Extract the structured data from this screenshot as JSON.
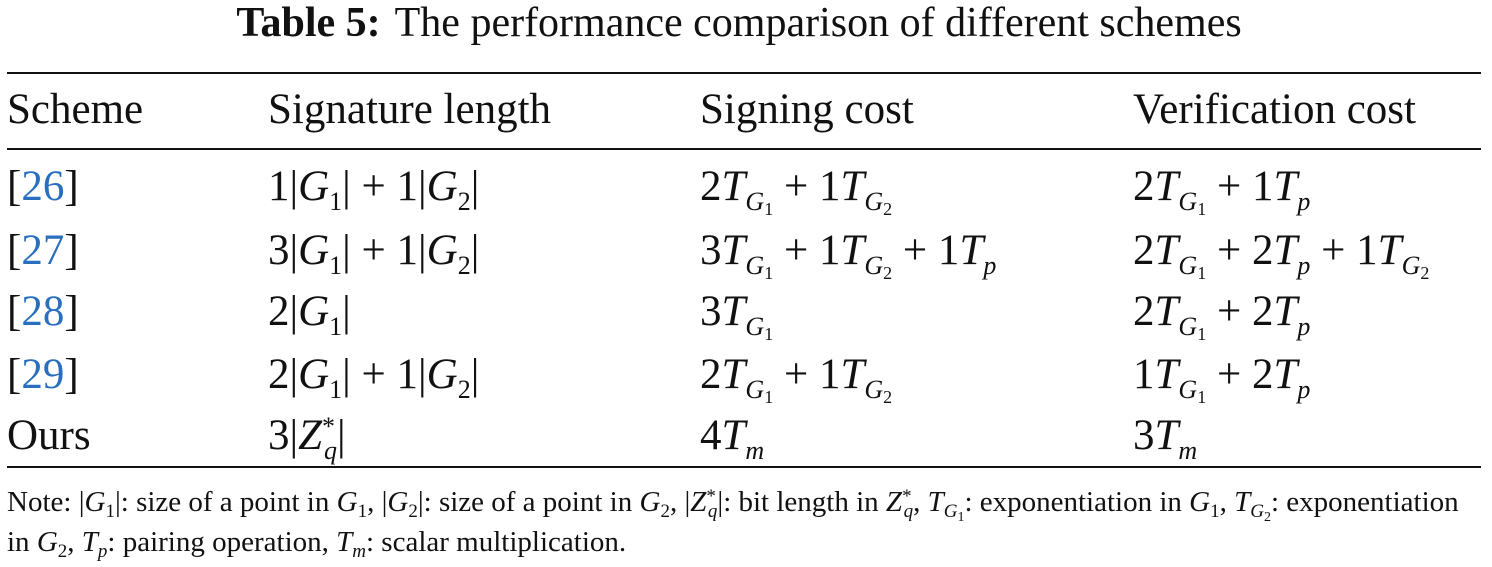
{
  "caption": {
    "label": "Table 5:",
    "text": "The performance comparison of different schemes"
  },
  "headers": [
    "Scheme",
    "Signature length",
    "Signing cost",
    "Verification cost"
  ],
  "rows": [
    {
      "scheme": "[26]",
      "ref": "26"
    },
    {
      "scheme": "[27]",
      "ref": "27"
    },
    {
      "scheme": "[28]",
      "ref": "28"
    },
    {
      "scheme": "[29]",
      "ref": "29"
    },
    {
      "scheme": "Ours"
    }
  ],
  "note_label": "Note:",
  "colors": {
    "text": "#111111",
    "link": "#2a6fbd",
    "rule": "#111111"
  }
}
